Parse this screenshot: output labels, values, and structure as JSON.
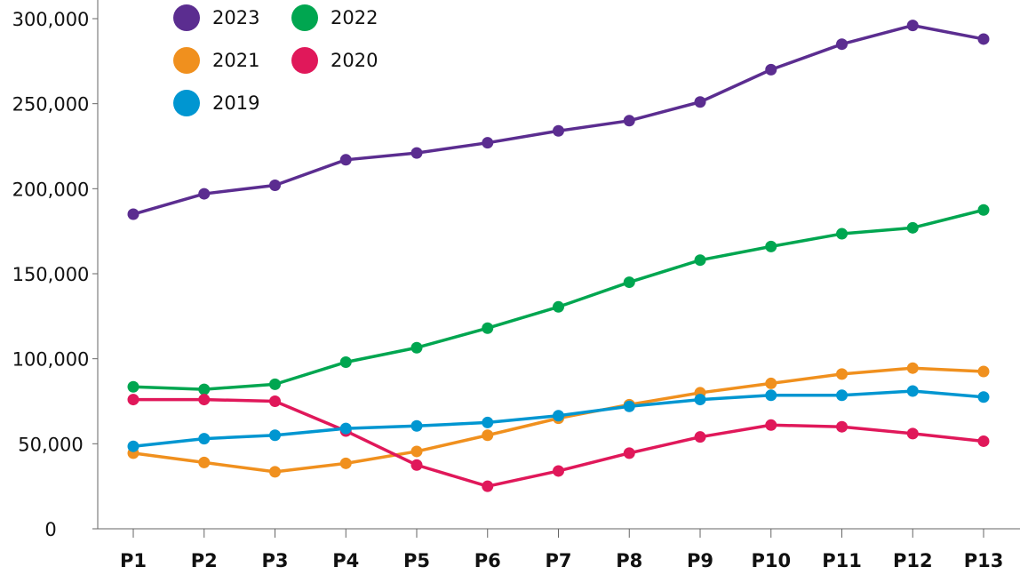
{
  "chart_data": {
    "type": "line",
    "categories": [
      "P1",
      "P2",
      "P3",
      "P4",
      "P5",
      "P6",
      "P7",
      "P8",
      "P9",
      "P10",
      "P11",
      "P12",
      "P13"
    ],
    "series": [
      {
        "name": "2023",
        "color": "#5b2d90",
        "values": [
          185000,
          197000,
          202000,
          217000,
          221000,
          227000,
          234000,
          240000,
          251000,
          270000,
          285000,
          296000,
          288000
        ]
      },
      {
        "name": "2022",
        "color": "#00a650",
        "values": [
          83500,
          82000,
          85000,
          98000,
          106500,
          118000,
          130500,
          145000,
          158000,
          166000,
          173500,
          177000,
          187500
        ]
      },
      {
        "name": "2021",
        "color": "#f0901e",
        "values": [
          44500,
          39000,
          33500,
          38500,
          45500,
          55000,
          65000,
          73000,
          80000,
          85500,
          91000,
          94500,
          92500
        ]
      },
      {
        "name": "2020",
        "color": "#e0185a",
        "values": [
          76000,
          76000,
          75000,
          57500,
          37500,
          25000,
          34000,
          44500,
          54000,
          61000,
          60000,
          56000,
          51500
        ]
      },
      {
        "name": "2019",
        "color": "#0096d1",
        "values": [
          48500,
          53000,
          55000,
          59000,
          60500,
          62500,
          66500,
          72000,
          76000,
          78500,
          78500,
          81000,
          77500
        ]
      }
    ],
    "ylim": [
      0,
      300000
    ],
    "yticks": [
      0,
      {
        "value": 50000,
        "label": "50,000"
      },
      {
        "value": 100000,
        "label": "100,000"
      },
      {
        "value": 150000,
        "label": "150,000"
      },
      {
        "value": 200000,
        "label": "200,000"
      },
      {
        "value": 250000,
        "label": "250,000"
      },
      {
        "value": 300000,
        "label": "300,000"
      }
    ],
    "grid": false,
    "legend": "top-left"
  }
}
